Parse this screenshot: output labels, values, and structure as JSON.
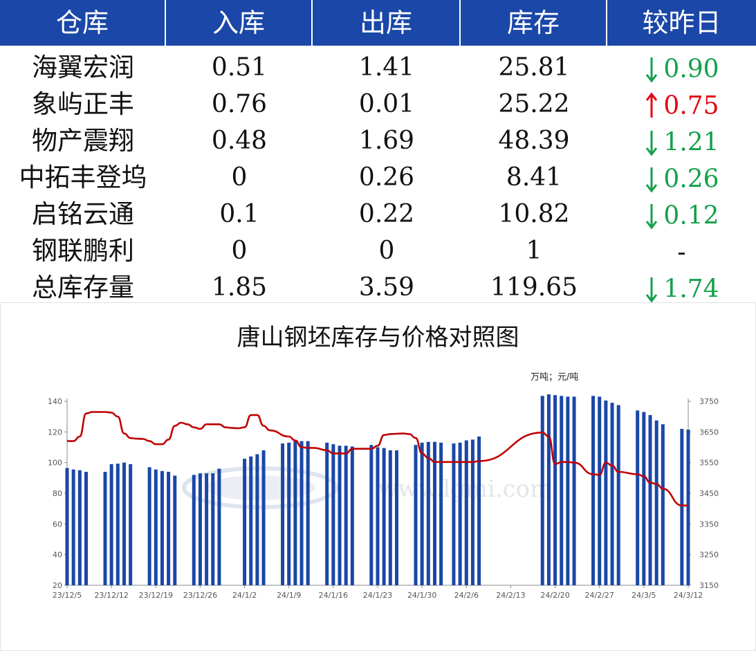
{
  "table": {
    "headers": [
      "仓库",
      "入库",
      "出库",
      "库存",
      "较昨日"
    ],
    "rows": [
      {
        "name": "海翼宏润",
        "in": "0.51",
        "out": "1.41",
        "stock": "25.81",
        "direction": "down",
        "change": "0.90"
      },
      {
        "name": "象屿正丰",
        "in": "0.76",
        "out": "0.01",
        "stock": "25.22",
        "direction": "up",
        "change": "0.75"
      },
      {
        "name": "物产震翔",
        "in": "0.48",
        "out": "1.69",
        "stock": "48.39",
        "direction": "down",
        "change": "1.21"
      },
      {
        "name": "中拓丰登坞",
        "in": "0",
        "out": "0.26",
        "stock": "8.41",
        "direction": "down",
        "change": "0.26"
      },
      {
        "name": "启铭云通",
        "in": "0.1",
        "out": "0.22",
        "stock": "10.82",
        "direction": "down",
        "change": "0.12"
      },
      {
        "name": "钢联鹏利",
        "in": "0",
        "out": "0",
        "stock": "1",
        "direction": "none",
        "change": "-"
      },
      {
        "name": "总库存量",
        "in": "1.85",
        "out": "3.59",
        "stock": "119.65",
        "direction": "down",
        "change": "1.74"
      }
    ],
    "colors": {
      "header_bg": "#1a47a8",
      "up": "#e60012",
      "down": "#13a04a",
      "text": "#111111"
    }
  },
  "chart_data": {
    "type": "bar+line",
    "title": "唐山钢坯库存与价格对照图",
    "unit_label": "万吨；元/吨",
    "x_ticks": [
      "23/12/5",
      "23/12/12",
      "23/12/19",
      "23/12/26",
      "24/1/2",
      "24/1/9",
      "24/1/16",
      "24/1/23",
      "24/1/30",
      "24/2/6",
      "24/2/13",
      "24/2/20",
      "24/2/27",
      "24/3/5",
      "24/3/12"
    ],
    "x_range": [
      "2023-12-05",
      "2024-03-12"
    ],
    "y_left": {
      "min": 20,
      "max": 140,
      "ticks": [
        20,
        40,
        60,
        80,
        100,
        120,
        140
      ]
    },
    "y_right": {
      "min": 3150,
      "max": 3750,
      "ticks": [
        3150,
        3250,
        3350,
        3450,
        3550,
        3650,
        3750
      ]
    },
    "grid": false,
    "watermark": "www.lgmi.com",
    "series": [
      {
        "kind": "bar",
        "axis": "left",
        "color": "#1a47a8",
        "points": [
          [
            "2023-12-05",
            96.5
          ],
          [
            "2023-12-06",
            95.5
          ],
          [
            "2023-12-07",
            95
          ],
          [
            "2023-12-08",
            94
          ],
          [
            "2023-12-11",
            94
          ],
          [
            "2023-12-12",
            99
          ],
          [
            "2023-12-13",
            99.3
          ],
          [
            "2023-12-14",
            100
          ],
          [
            "2023-12-15",
            99
          ],
          [
            "2023-12-18",
            97
          ],
          [
            "2023-12-19",
            95.5
          ],
          [
            "2023-12-20",
            94.5
          ],
          [
            "2023-12-21",
            94
          ],
          [
            "2023-12-22",
            91.5
          ],
          [
            "2023-12-25",
            92
          ],
          [
            "2023-12-26",
            93
          ],
          [
            "2023-12-27",
            93
          ],
          [
            "2023-12-28",
            93
          ],
          [
            "2023-12-29",
            96
          ],
          [
            "2024-01-02",
            102.5
          ],
          [
            "2024-01-03",
            104
          ],
          [
            "2024-01-04",
            105.5
          ],
          [
            "2024-01-05",
            108
          ],
          [
            "2024-01-08",
            112.5
          ],
          [
            "2024-01-09",
            113
          ],
          [
            "2024-01-10",
            114
          ],
          [
            "2024-01-11",
            114
          ],
          [
            "2024-01-12",
            114
          ],
          [
            "2024-01-15",
            113
          ],
          [
            "2024-01-16",
            112
          ],
          [
            "2024-01-17",
            111
          ],
          [
            "2024-01-18",
            111
          ],
          [
            "2024-01-19",
            110.5
          ],
          [
            "2024-01-22",
            111.5
          ],
          [
            "2024-01-23",
            110
          ],
          [
            "2024-01-24",
            109.5
          ],
          [
            "2024-01-25",
            108
          ],
          [
            "2024-01-26",
            108
          ],
          [
            "2024-01-29",
            111.5
          ],
          [
            "2024-01-30",
            113
          ],
          [
            "2024-01-31",
            113.5
          ],
          [
            "2024-02-01",
            113.5
          ],
          [
            "2024-02-02",
            113
          ],
          [
            "2024-02-04",
            112.5
          ],
          [
            "2024-02-05",
            113
          ],
          [
            "2024-02-06",
            114.5
          ],
          [
            "2024-02-07",
            115
          ],
          [
            "2024-02-08",
            117
          ],
          [
            "2024-02-18",
            143.5
          ],
          [
            "2024-02-19",
            144.5
          ],
          [
            "2024-02-20",
            144
          ],
          [
            "2024-02-21",
            143.5
          ],
          [
            "2024-02-22",
            143
          ],
          [
            "2024-02-23",
            143
          ],
          [
            "2024-02-26",
            143.5
          ],
          [
            "2024-02-27",
            143
          ],
          [
            "2024-02-28",
            140.5
          ],
          [
            "2024-02-29",
            139
          ],
          [
            "2024-03-01",
            137.5
          ],
          [
            "2024-03-04",
            134
          ],
          [
            "2024-03-05",
            133
          ],
          [
            "2024-03-06",
            131
          ],
          [
            "2024-03-07",
            127.5
          ],
          [
            "2024-03-08",
            125
          ],
          [
            "2024-03-11",
            122
          ],
          [
            "2024-03-12",
            121.5
          ]
        ]
      },
      {
        "kind": "line",
        "axis": "right",
        "color": "#c00000",
        "points": [
          [
            "2023-12-05",
            3620
          ],
          [
            "2023-12-06",
            3620
          ],
          [
            "2023-12-07",
            3635
          ],
          [
            "2023-12-08",
            3710
          ],
          [
            "2023-12-09",
            3715
          ],
          [
            "2023-12-11",
            3715
          ],
          [
            "2023-12-12",
            3713
          ],
          [
            "2023-12-13",
            3700
          ],
          [
            "2023-12-14",
            3645
          ],
          [
            "2023-12-15",
            3630
          ],
          [
            "2023-12-16",
            3628
          ],
          [
            "2023-12-17",
            3627
          ],
          [
            "2023-12-18",
            3620
          ],
          [
            "2023-12-19",
            3610
          ],
          [
            "2023-12-20",
            3610
          ],
          [
            "2023-12-21",
            3625
          ],
          [
            "2023-12-22",
            3670
          ],
          [
            "2023-12-23",
            3680
          ],
          [
            "2023-12-24",
            3675
          ],
          [
            "2023-12-25",
            3665
          ],
          [
            "2023-12-26",
            3660
          ],
          [
            "2023-12-27",
            3675
          ],
          [
            "2023-12-28",
            3675
          ],
          [
            "2023-12-29",
            3675
          ],
          [
            "2023-12-30",
            3665
          ],
          [
            "2023-12-31",
            3663
          ],
          [
            "2024-01-01",
            3662
          ],
          [
            "2024-01-02",
            3665
          ],
          [
            "2024-01-03",
            3705
          ],
          [
            "2024-01-04",
            3705
          ],
          [
            "2024-01-05",
            3670
          ],
          [
            "2024-01-06",
            3655
          ],
          [
            "2024-01-09",
            3635
          ],
          [
            "2024-01-10",
            3622
          ],
          [
            "2024-01-11",
            3600
          ],
          [
            "2024-01-12",
            3598
          ],
          [
            "2024-01-13",
            3598
          ],
          [
            "2024-01-15",
            3590
          ],
          [
            "2024-01-16",
            3580
          ],
          [
            "2024-01-17",
            3580
          ],
          [
            "2024-01-18",
            3580
          ],
          [
            "2024-01-19",
            3595
          ],
          [
            "2024-01-20",
            3595
          ],
          [
            "2024-01-22",
            3595
          ],
          [
            "2024-01-23",
            3605
          ],
          [
            "2024-01-24",
            3640
          ],
          [
            "2024-01-25",
            3643
          ],
          [
            "2024-01-27",
            3645
          ],
          [
            "2024-01-28",
            3643
          ],
          [
            "2024-01-29",
            3630
          ],
          [
            "2024-01-30",
            3580
          ],
          [
            "2024-01-31",
            3565
          ],
          [
            "2024-02-01",
            3552
          ],
          [
            "2024-02-04",
            3552
          ],
          [
            "2024-02-05",
            3552
          ],
          [
            "2024-02-06",
            3552
          ],
          [
            "2024-02-07",
            3552
          ],
          [
            "2024-02-08",
            3555
          ],
          [
            "2024-02-18",
            3648
          ],
          [
            "2024-02-19",
            3635
          ],
          [
            "2024-02-20",
            3545
          ],
          [
            "2024-02-21",
            3552
          ],
          [
            "2024-02-22",
            3552
          ],
          [
            "2024-02-23",
            3550
          ],
          [
            "2024-02-26",
            3512
          ],
          [
            "2024-02-27",
            3510
          ],
          [
            "2024-02-28",
            3550
          ],
          [
            "2024-02-29",
            3540
          ],
          [
            "2024-03-01",
            3520
          ],
          [
            "2024-03-04",
            3512
          ],
          [
            "2024-03-05",
            3505
          ],
          [
            "2024-03-06",
            3485
          ],
          [
            "2024-03-07",
            3480
          ],
          [
            "2024-03-08",
            3465
          ],
          [
            "2024-03-11",
            3410
          ],
          [
            "2024-03-12",
            3410
          ]
        ]
      }
    ]
  }
}
